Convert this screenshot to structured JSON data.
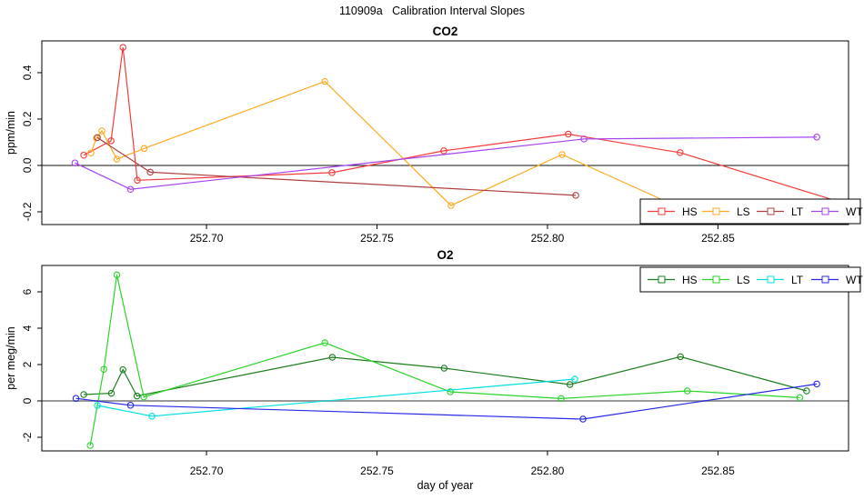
{
  "page_title": "110909a   Calibration Interval Slopes",
  "xlabel": "day of year",
  "chart_data": [
    {
      "type": "line",
      "title": "CO2",
      "ylabel": "ppm/min",
      "xlim": [
        252.6517,
        252.8883
      ],
      "ylim": [
        -0.255,
        0.537
      ],
      "grid": false,
      "legend_position": "bottom-right",
      "legend": [
        "HS",
        "LS",
        "LT",
        "WT"
      ],
      "xticks": [
        {
          "value": 252.7,
          "label": "252.70"
        },
        {
          "value": 252.75,
          "label": "252.75"
        },
        {
          "value": 252.8,
          "label": "252.80"
        },
        {
          "value": 252.85,
          "label": "252.85"
        }
      ],
      "yticks": [
        {
          "value": -0.2,
          "label": "-0.2"
        },
        {
          "value": 0.0,
          "label": "0.0"
        },
        {
          "value": 0.2,
          "label": "0.2"
        },
        {
          "value": 0.4,
          "label": "0.4"
        }
      ],
      "series": [
        {
          "name": "HS",
          "color": "#f43b3b",
          "points": [
            [
              252.664,
              0.044
            ],
            [
              252.672,
              0.106
            ],
            [
              252.6755,
              0.509
            ],
            [
              252.6797,
              -0.064
            ],
            [
              252.7368,
              -0.031
            ],
            [
              252.7696,
              0.063
            ],
            [
              252.8061,
              0.135
            ],
            [
              252.8389,
              0.055
            ]
          ],
          "tail": [
            [
              252.8883,
              -0.169
            ]
          ]
        },
        {
          "name": "LS",
          "color": "#ffaa22",
          "points": [
            [
              252.6661,
              0.054
            ],
            [
              252.6677,
              0.118
            ],
            [
              252.6693,
              0.149
            ],
            [
              252.6737,
              0.027
            ],
            [
              252.6817,
              0.073
            ],
            [
              252.7347,
              0.362
            ],
            [
              252.7717,
              -0.173
            ],
            [
              252.8043,
              0.047
            ]
          ],
          "tail": [
            [
              252.8421,
              -0.204
            ]
          ]
        },
        {
          "name": "LT",
          "color": "#b04040",
          "points": [
            [
              252.668,
              0.12
            ],
            [
              252.6835,
              -0.029
            ],
            [
              252.8083,
              -0.129
            ]
          ]
        },
        {
          "name": "WT",
          "color": "#a644f0",
          "points": [
            [
              252.6614,
              0.011
            ],
            [
              252.6777,
              -0.103
            ],
            [
              252.8107,
              0.114
            ],
            [
              252.879,
              0.122
            ]
          ]
        }
      ]
    },
    {
      "type": "line",
      "title": "O2",
      "ylabel": "per meg/min",
      "xlim": [
        252.6517,
        252.8883
      ],
      "ylim": [
        -2.75,
        7.45
      ],
      "grid": false,
      "legend_position": "top-right",
      "legend": [
        "HS",
        "LS",
        "LT",
        "WT"
      ],
      "xticks": [
        {
          "value": 252.7,
          "label": "252.70"
        },
        {
          "value": 252.75,
          "label": "252.75"
        },
        {
          "value": 252.8,
          "label": "252.80"
        },
        {
          "value": 252.85,
          "label": "252.85"
        }
      ],
      "yticks": [
        {
          "value": -2,
          "label": "-2"
        },
        {
          "value": 0,
          "label": "0"
        },
        {
          "value": 2,
          "label": "2"
        },
        {
          "value": 4,
          "label": "4"
        },
        {
          "value": 6,
          "label": "6"
        }
      ],
      "series": [
        {
          "name": "HS",
          "color": "#1e7d1e",
          "points": [
            [
              252.664,
              0.35
            ],
            [
              252.6721,
              0.42
            ],
            [
              252.6755,
              1.72
            ],
            [
              252.6796,
              0.27
            ],
            [
              252.7369,
              2.4
            ],
            [
              252.7697,
              1.8
            ],
            [
              252.8066,
              0.9
            ],
            [
              252.839,
              2.43
            ],
            [
              252.876,
              0.55
            ]
          ]
        },
        {
          "name": "LS",
          "color": "#2ad42a",
          "points": [
            [
              252.6659,
              -2.45
            ],
            [
              252.6699,
              1.74
            ],
            [
              252.6737,
              6.93
            ],
            [
              252.6816,
              0.22
            ],
            [
              252.7347,
              3.2
            ],
            [
              252.7715,
              0.5
            ],
            [
              252.804,
              0.13
            ],
            [
              252.841,
              0.55
            ],
            [
              252.874,
              0.18
            ]
          ]
        },
        {
          "name": "LT",
          "color": "#00e0e0",
          "points": [
            [
              252.668,
              -0.25
            ],
            [
              252.684,
              -0.84
            ],
            [
              252.808,
              1.2
            ]
          ]
        },
        {
          "name": "WT",
          "color": "#2828e8",
          "points": [
            [
              252.6617,
              0.14
            ],
            [
              252.6777,
              -0.24
            ],
            [
              252.8104,
              -1.0
            ],
            [
              252.879,
              0.93
            ]
          ]
        }
      ]
    }
  ]
}
